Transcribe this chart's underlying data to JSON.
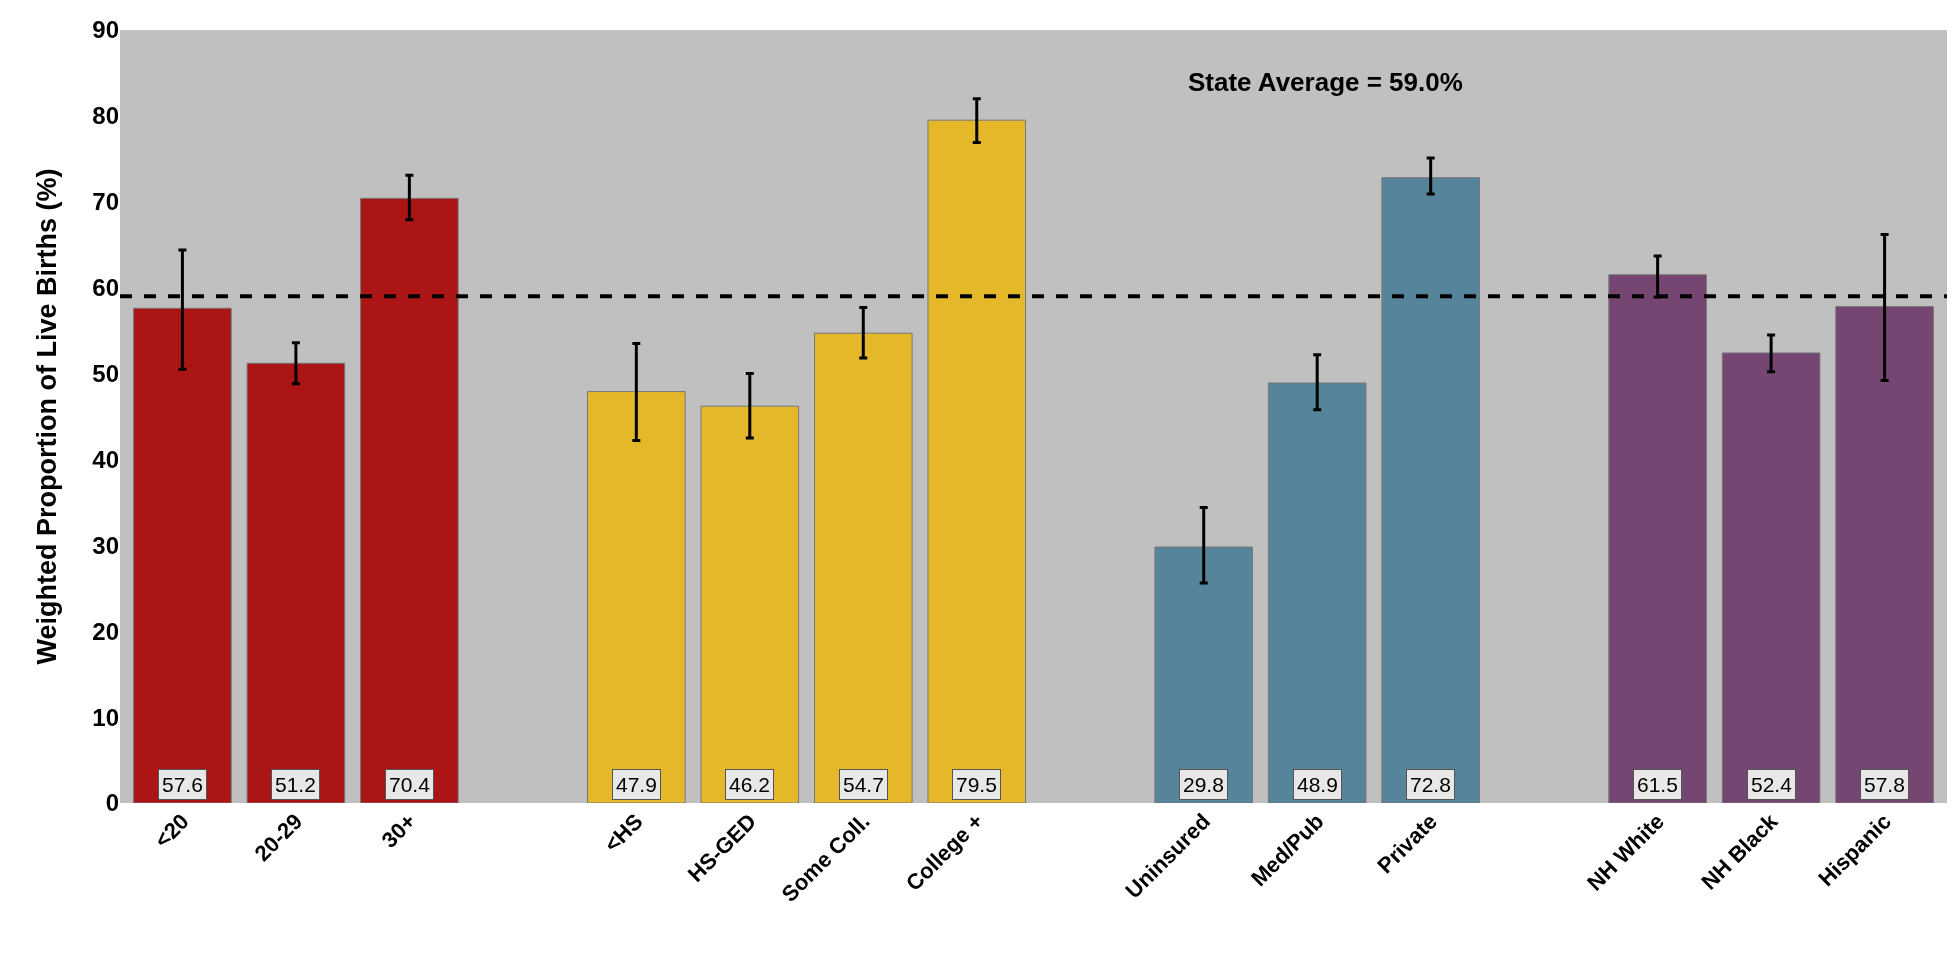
{
  "chart_data": {
    "type": "bar",
    "ylabel": "Weighted Proportion of Live Births (%)",
    "categories": [
      "<20",
      "20-29",
      "30+",
      null,
      "<HS",
      "HS-GED",
      "Some Coll.",
      "College +",
      null,
      "Uninsured",
      "Med/Pub",
      "Private",
      null,
      "NH White",
      "NH Black",
      "Hispanic"
    ],
    "values": [
      57.6,
      51.2,
      70.4,
      null,
      47.9,
      46.2,
      54.7,
      79.5,
      null,
      29.8,
      48.9,
      72.8,
      null,
      61.5,
      52.4,
      57.8
    ],
    "colors": [
      "#ab1515",
      "#ab1515",
      "#ab1515",
      null,
      "#e5b82a",
      "#e5b82a",
      "#e5b82a",
      "#e5b82a",
      null,
      "#55849b",
      "#55849b",
      "#55849b",
      null,
      "#764672",
      "#764672",
      "#764672"
    ],
    "errors": [
      [
        50.5,
        64.4
      ],
      [
        48.8,
        53.6
      ],
      [
        67.9,
        73.1
      ],
      null,
      [
        42.2,
        53.5
      ],
      [
        42.5,
        50.0
      ],
      [
        51.8,
        57.7
      ],
      [
        76.9,
        82.0
      ],
      null,
      [
        25.6,
        34.4
      ],
      [
        45.8,
        52.2
      ],
      [
        70.9,
        75.1
      ],
      null,
      [
        58.9,
        63.7
      ],
      [
        50.2,
        54.5
      ],
      [
        49.2,
        66.2
      ]
    ],
    "data_labels": true,
    "ylim": [
      0,
      90
    ],
    "yticks": [
      0,
      10,
      20,
      30,
      40,
      50,
      60,
      70,
      80,
      90
    ],
    "grid": false,
    "ref_lines": [
      {
        "axis": "y",
        "value": 59.0,
        "label": "State Average = 59.0%",
        "color": "#000000",
        "line_style": "dashed"
      }
    ]
  }
}
